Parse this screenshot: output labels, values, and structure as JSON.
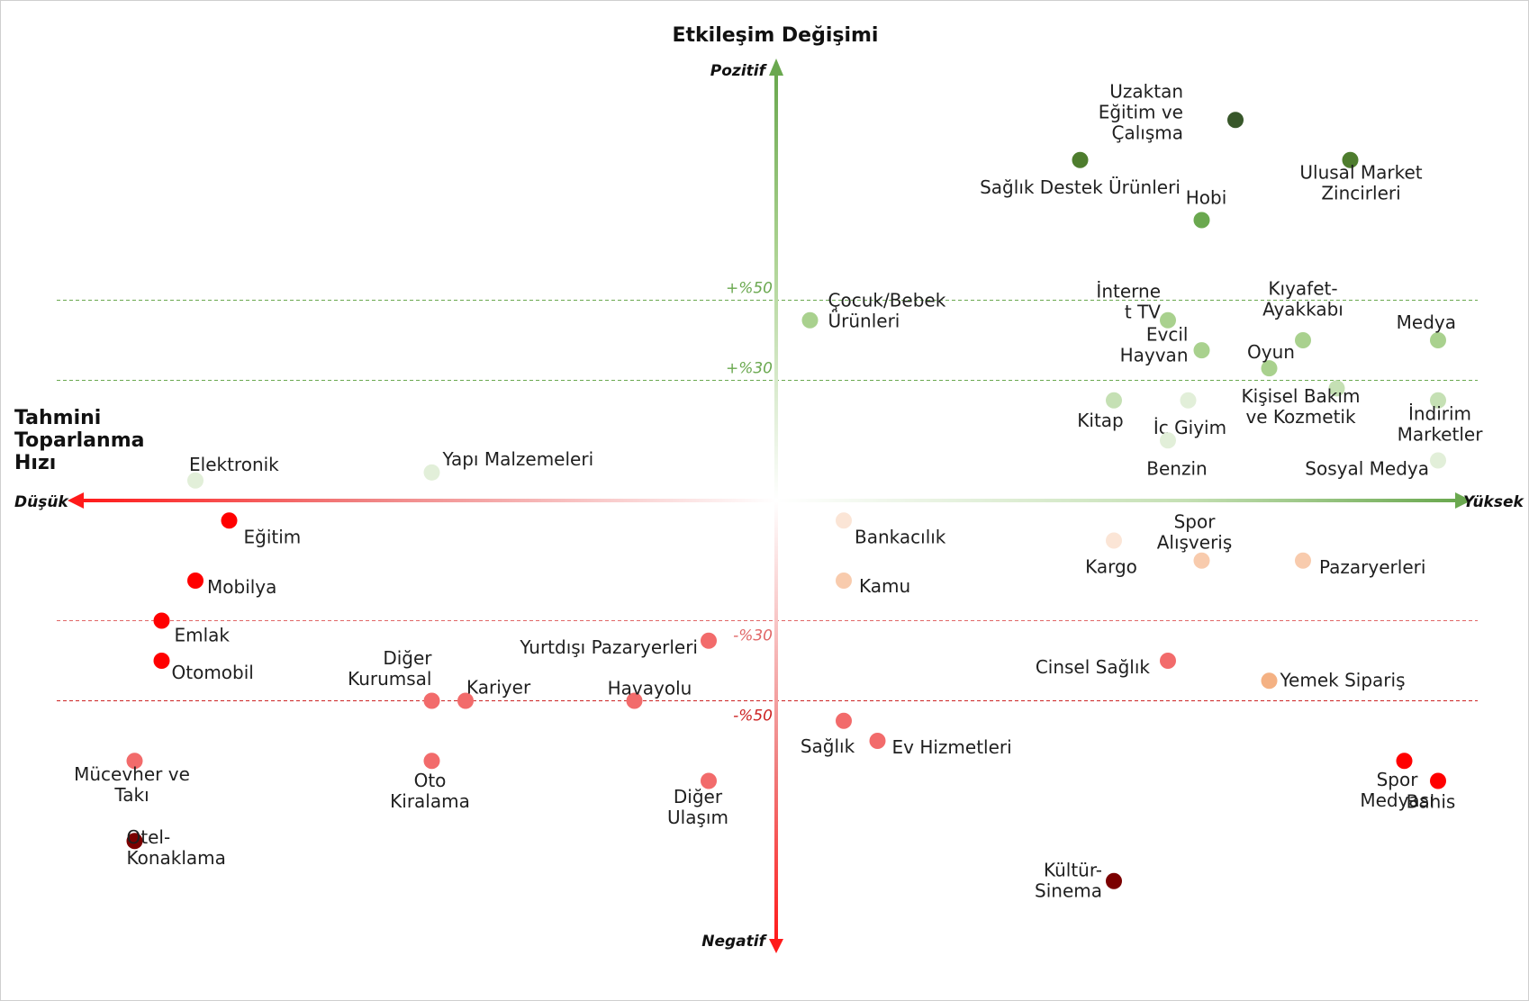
{
  "chart_data": {
    "type": "scatter",
    "y_title": "Etkileşim Değişimi",
    "x_title": [
      "Tahmini",
      "Toparlanma",
      "Hızı"
    ],
    "y_top": "Pozitif",
    "y_bottom": "Negatif",
    "x_left": "Düşük",
    "x_right": "Yüksek",
    "ylim": [
      -100,
      100
    ],
    "reference_lines": [
      {
        "value": 50,
        "label": "+%50",
        "color": "#6aa84f"
      },
      {
        "value": 30,
        "label": "+%30",
        "color": "#6aa84f"
      },
      {
        "value": -30,
        "label": "-%30",
        "color": "#e06666"
      },
      {
        "value": -50,
        "label": "-%50",
        "color": "#cc2222"
      }
    ],
    "points": [
      {
        "lines": [
          "Uzaktan",
          "Eğitim ve",
          "Çalışma"
        ],
        "x": 0.68,
        "y": 95,
        "color": "#38572a",
        "anchor": "end",
        "ldx": -58,
        "ldy": -9
      },
      {
        "lines": [
          "Sağlık Destek Ürünleri"
        ],
        "x": 0.45,
        "y": 85,
        "color": "#4e7d2e",
        "anchor": "middle",
        "ldx": 0,
        "ldy": 30
      },
      {
        "lines": [
          "Ulusal Market",
          "Zincirleri"
        ],
        "x": 0.85,
        "y": 85,
        "color": "#4e7d2e",
        "anchor": "middle",
        "ldx": 12,
        "ldy": 25
      },
      {
        "lines": [
          "Hobi"
        ],
        "x": 0.63,
        "y": 70,
        "color": "#6aa84f",
        "anchor": "middle",
        "ldx": 5,
        "ldy": -25
      },
      {
        "lines": [
          "Çocuk/Bebek",
          "Ürünleri"
        ],
        "x": 0.05,
        "y": 45,
        "color": "#a9d18e",
        "anchor": "start",
        "ldx": 20,
        "ldy": -11
      },
      {
        "lines": [
          "İnterne",
          "t TV"
        ],
        "x": 0.58,
        "y": 45,
        "color": "#a9d18e",
        "anchor": "end",
        "ldx": -8,
        "ldy": -21
      },
      {
        "lines": [
          "Kıyafet-",
          "Ayakkabı"
        ],
        "x": 0.78,
        "y": 40,
        "color": "#a9d18e",
        "anchor": "middle",
        "ldx": 0,
        "ldy": -46
      },
      {
        "lines": [
          "Medya"
        ],
        "x": 0.98,
        "y": 40,
        "color": "#a9d18e",
        "anchor": "end",
        "ldx": 20,
        "ldy": -20
      },
      {
        "lines": [
          "Evcil",
          "Hayvan"
        ],
        "x": 0.63,
        "y": 37.5,
        "color": "#a9d18e",
        "anchor": "end",
        "ldx": -15,
        "ldy": -6
      },
      {
        "lines": [
          "Oyun"
        ],
        "x": 0.73,
        "y": 33,
        "color": "#a9d18e",
        "anchor": "middle",
        "ldx": 2,
        "ldy": -18
      },
      {
        "lines": [
          "Kişisel Bakım",
          "ve Kozmetik"
        ],
        "x": 0.83,
        "y": 28,
        "color": "#c5e0b4",
        "anchor": "middle",
        "ldx": -40,
        "ldy": 20
      },
      {
        "lines": [
          "Kitap"
        ],
        "x": 0.5,
        "y": 25,
        "color": "#c5e0b4",
        "anchor": "middle",
        "ldx": -15,
        "ldy": 22
      },
      {
        "lines": [
          "İç Giyim"
        ],
        "x": 0.61,
        "y": 25,
        "color": "#e2efd9",
        "anchor": "middle",
        "ldx": 2,
        "ldy": 30
      },
      {
        "lines": [
          "İndirim",
          "Marketler"
        ],
        "x": 0.98,
        "y": 25,
        "color": "#c5e0b4",
        "anchor": "middle",
        "ldx": 2,
        "ldy": 26
      },
      {
        "lines": [
          "Benzin"
        ],
        "x": 0.58,
        "y": 15,
        "color": "#e2efd9",
        "anchor": "middle",
        "ldx": 10,
        "ldy": 31
      },
      {
        "lines": [
          "Elektronik"
        ],
        "x": -0.86,
        "y": 5,
        "color": "#e2efd9",
        "anchor": "start",
        "ldx": -7,
        "ldy": -18
      },
      {
        "lines": [
          "Yapı Malzemeleri"
        ],
        "x": -0.51,
        "y": 7,
        "color": "#e2efd9",
        "anchor": "start",
        "ldx": 12,
        "ldy": -15
      },
      {
        "lines": [
          "Sosyal Medya"
        ],
        "x": 0.98,
        "y": 10,
        "color": "#e2efd9",
        "anchor": "end",
        "ldx": -10,
        "ldy": 9
      },
      {
        "lines": [
          "Eğitim"
        ],
        "x": -0.81,
        "y": -5,
        "color": "#ff0000",
        "anchor": "start",
        "ldx": 16,
        "ldy": 18
      },
      {
        "lines": [
          "Bankacılık"
        ],
        "x": 0.1,
        "y": -5,
        "color": "#fbe5d6",
        "anchor": "start",
        "ldx": 12,
        "ldy": 18
      },
      {
        "lines": [
          "Kargo"
        ],
        "x": 0.5,
        "y": -10,
        "color": "#fbe5d6",
        "anchor": "middle",
        "ldx": -3,
        "ldy": 29
      },
      {
        "lines": [
          "Spor",
          "Alışveriş"
        ],
        "x": 0.63,
        "y": -15,
        "color": "#f8cbad",
        "anchor": "middle",
        "ldx": -8,
        "ldy": -32
      },
      {
        "lines": [
          "Pazaryerleri"
        ],
        "x": 0.78,
        "y": -15,
        "color": "#f8cbad",
        "anchor": "start",
        "ldx": 18,
        "ldy": 7
      },
      {
        "lines": [
          "Mobilya"
        ],
        "x": -0.86,
        "y": -20,
        "color": "#ff0000",
        "anchor": "start",
        "ldx": 13,
        "ldy": 7
      },
      {
        "lines": [
          "Kamu"
        ],
        "x": 0.1,
        "y": -20,
        "color": "#f8cbad",
        "anchor": "start",
        "ldx": 17,
        "ldy": 6
      },
      {
        "lines": [
          "Emlak"
        ],
        "x": -0.91,
        "y": -30,
        "color": "#ff0000",
        "anchor": "start",
        "ldx": 14,
        "ldy": 16
      },
      {
        "lines": [
          "Yurtdışı Pazaryerleri"
        ],
        "x": -0.1,
        "y": -35,
        "color": "#f26b6b",
        "anchor": "end",
        "ldx": -12,
        "ldy": 7
      },
      {
        "lines": [
          "Otomobil"
        ],
        "x": -0.91,
        "y": -40,
        "color": "#ff0000",
        "anchor": "start",
        "ldx": 11,
        "ldy": 13
      },
      {
        "lines": [
          "Cinsel Sağlık"
        ],
        "x": 0.58,
        "y": -40,
        "color": "#f26b6b",
        "anchor": "end",
        "ldx": -20,
        "ldy": 7
      },
      {
        "lines": [
          "Yemek Sipariş"
        ],
        "x": 0.73,
        "y": -45,
        "color": "#f4b183",
        "anchor": "start",
        "ldx": 12,
        "ldy": -1
      },
      {
        "lines": [
          "Diğer",
          "Kurumsal"
        ],
        "x": -0.51,
        "y": -50,
        "color": "#f26b6b",
        "anchor": "end",
        "ldx": 0,
        "ldy": -36
      },
      {
        "lines": [
          "Kariyer"
        ],
        "x": -0.46,
        "y": -50,
        "color": "#f26b6b",
        "anchor": "start",
        "ldx": 1,
        "ldy": -15
      },
      {
        "lines": [
          "Havayolu"
        ],
        "x": -0.21,
        "y": -50,
        "color": "#f26b6b",
        "anchor": "middle",
        "ldx": 17,
        "ldy": -14
      },
      {
        "lines": [
          "Sağlık"
        ],
        "x": 0.1,
        "y": -55,
        "color": "#f26b6b",
        "anchor": "middle",
        "ldx": -18,
        "ldy": 28
      },
      {
        "lines": [
          "Ev Hizmetleri"
        ],
        "x": 0.15,
        "y": -60,
        "color": "#f26b6b",
        "anchor": "start",
        "ldx": 16,
        "ldy": 7
      },
      {
        "lines": [
          "Mücevher ve",
          "Takı"
        ],
        "x": -0.95,
        "y": -65,
        "color": "#f26b6b",
        "anchor": "middle",
        "ldx": -3,
        "ldy": 26
      },
      {
        "lines": [
          "Oto",
          "Kiralama"
        ],
        "x": -0.51,
        "y": -65,
        "color": "#f26b6b",
        "anchor": "middle",
        "ldx": -2,
        "ldy": 33
      },
      {
        "lines": [
          "Spor",
          "Medyası"
        ],
        "x": 0.93,
        "y": -65,
        "color": "#ff0000",
        "anchor": "middle",
        "ldx": -8,
        "ldy": 32
      },
      {
        "lines": [
          "Diğer",
          "Ulaşım"
        ],
        "x": -0.1,
        "y": -70,
        "color": "#f26b6b",
        "anchor": "middle",
        "ldx": -12,
        "ldy": 29
      },
      {
        "lines": [
          "Bahis"
        ],
        "x": 0.98,
        "y": -70,
        "color": "#ff0000",
        "anchor": "middle",
        "ldx": -8,
        "ldy": 23
      },
      {
        "lines": [
          "Otel-",
          "Konaklama"
        ],
        "x": -0.95,
        "y": -85,
        "color": "#7b0000",
        "anchor": "start",
        "ldx": -9,
        "ldy": 7
      },
      {
        "lines": [
          "Kültür-",
          "Sinema"
        ],
        "x": 0.5,
        "y": -95,
        "color": "#7b0000",
        "anchor": "end",
        "ldx": -13,
        "ldy": -1
      }
    ]
  }
}
